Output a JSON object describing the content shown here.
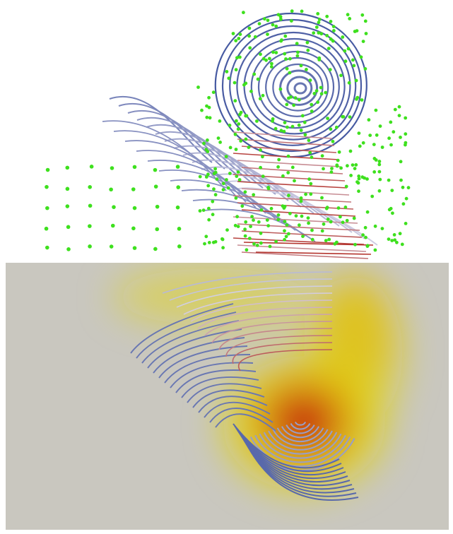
{
  "scene": {
    "background_color": "#ffffff",
    "plane_color": "#c9c7bf",
    "streamline_cool_color": "#3a4f9c",
    "streamline_mid_color": "#d6d3e6",
    "streamline_warm_color": "#b0231a",
    "seed_point_color": "#3ee01e",
    "heat_hot_color": "#c61d0a",
    "heat_warm_color": "#dd9a0a",
    "heat_mild_color": "#e2d60c"
  }
}
